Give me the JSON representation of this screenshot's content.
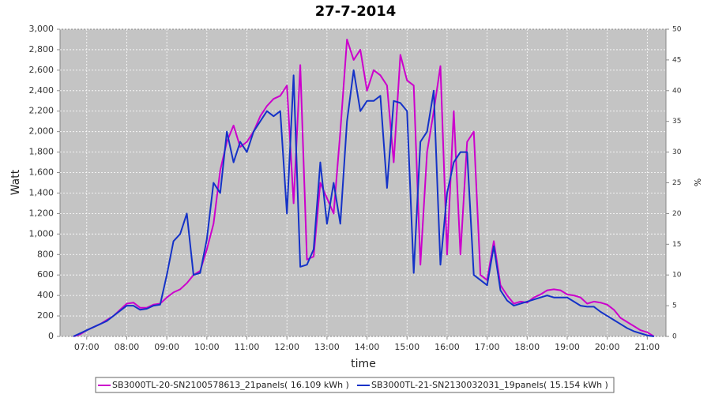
{
  "chart_data": {
    "type": "line",
    "title": "27-7-2014",
    "xlabel": "time",
    "ylabel": "Watt",
    "y2label": "%",
    "x": [
      "06:40",
      "06:50",
      "07:00",
      "07:10",
      "07:20",
      "07:30",
      "07:40",
      "07:50",
      "08:00",
      "08:10",
      "08:20",
      "08:30",
      "08:40",
      "08:50",
      "09:00",
      "09:10",
      "09:20",
      "09:30",
      "09:40",
      "09:50",
      "10:00",
      "10:10",
      "10:20",
      "10:30",
      "10:40",
      "10:50",
      "11:00",
      "11:10",
      "11:20",
      "11:30",
      "11:40",
      "11:50",
      "12:00",
      "12:10",
      "12:20",
      "12:30",
      "12:40",
      "12:50",
      "13:00",
      "13:10",
      "13:20",
      "13:30",
      "13:40",
      "13:50",
      "14:00",
      "14:10",
      "14:20",
      "14:30",
      "14:40",
      "14:50",
      "15:00",
      "15:10",
      "15:20",
      "15:30",
      "15:40",
      "15:50",
      "16:00",
      "16:10",
      "16:20",
      "16:30",
      "16:40",
      "16:50",
      "17:00",
      "17:10",
      "17:20",
      "17:30",
      "17:40",
      "17:50",
      "18:00",
      "18:10",
      "18:20",
      "18:30",
      "18:40",
      "18:50",
      "19:00",
      "19:10",
      "19:20",
      "19:30",
      "19:40",
      "19:50",
      "20:00",
      "20:10",
      "20:20",
      "20:30",
      "20:40",
      "20:50",
      "21:00",
      "21:10"
    ],
    "series": [
      {
        "name": "SB3000TL-20-SN2100578613_21panels( 16.109 kWh )",
        "color": "#cc00cc",
        "values": [
          0,
          20,
          60,
          90,
          120,
          160,
          200,
          260,
          320,
          330,
          280,
          280,
          310,
          320,
          380,
          430,
          460,
          520,
          600,
          640,
          850,
          1100,
          1620,
          1900,
          2060,
          1850,
          1900,
          2000,
          2150,
          2250,
          2320,
          2350,
          2450,
          1300,
          2650,
          750,
          780,
          1500,
          1350,
          1200,
          2000,
          2900,
          2700,
          2800,
          2400,
          2600,
          2550,
          2450,
          1700,
          2750,
          2500,
          2450,
          700,
          1800,
          2200,
          2640,
          800,
          2200,
          800,
          1900,
          2000,
          600,
          550,
          930,
          500,
          400,
          320,
          340,
          330,
          380,
          410,
          450,
          460,
          450,
          410,
          400,
          380,
          320,
          340,
          330,
          310,
          260,
          180,
          140,
          100,
          60,
          40,
          0
        ]
      },
      {
        "name": "SB3000TL-21-SN2130032031_19panels( 15.154 kWh )",
        "color": "#1432c8",
        "values": [
          0,
          30,
          60,
          90,
          120,
          150,
          200,
          250,
          300,
          300,
          260,
          270,
          300,
          310,
          600,
          930,
          1000,
          1200,
          600,
          620,
          950,
          1500,
          1400,
          2000,
          1700,
          1900,
          1800,
          2000,
          2100,
          2200,
          2150,
          2200,
          1200,
          2550,
          680,
          700,
          850,
          1700,
          1100,
          1500,
          1100,
          2100,
          2600,
          2200,
          2300,
          2300,
          2350,
          1450,
          2300,
          2280,
          2200,
          620,
          1900,
          2000,
          2400,
          700,
          1400,
          1700,
          1800,
          1800,
          600,
          550,
          500,
          880,
          450,
          350,
          300,
          320,
          340,
          360,
          380,
          400,
          380,
          380,
          380,
          340,
          300,
          290,
          290,
          240,
          200,
          160,
          120,
          80,
          50,
          30,
          10,
          0
        ]
      }
    ],
    "xlim": [
      "06:20",
      "21:28"
    ],
    "xticks": [
      "07:00",
      "08:00",
      "09:00",
      "10:00",
      "11:00",
      "12:00",
      "13:00",
      "14:00",
      "15:00",
      "16:00",
      "17:00",
      "18:00",
      "19:00",
      "20:00",
      "21:00"
    ],
    "ylim": [
      0,
      3000
    ],
    "yticks": [
      0,
      200,
      400,
      600,
      800,
      {
        "value": 1000,
        "label": "1,000"
      },
      {
        "value": 1200,
        "label": "1,200"
      },
      {
        "value": 1400,
        "label": "1,400"
      },
      {
        "value": 1600,
        "label": "1,600"
      },
      {
        "value": 1800,
        "label": "1,800"
      },
      {
        "value": 2000,
        "label": "2,000"
      },
      {
        "value": 2200,
        "label": "2,200"
      },
      {
        "value": 2400,
        "label": "2,400"
      },
      {
        "value": 2600,
        "label": "2,600"
      },
      {
        "value": 2800,
        "label": "2,800"
      },
      {
        "value": 3000,
        "label": "3,000"
      }
    ],
    "y2lim": [
      0,
      50
    ],
    "y2ticks": [
      0,
      5,
      10,
      15,
      20,
      25,
      30,
      35,
      40,
      45,
      50
    ],
    "grid": true
  }
}
